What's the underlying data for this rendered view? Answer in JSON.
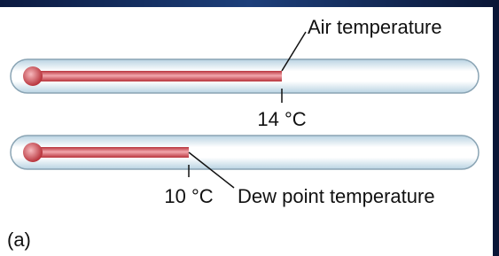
{
  "thermometers": [
    {
      "label": "Air temperature",
      "reading": "14 °C"
    },
    {
      "label": "Dew point temperature",
      "reading": "10 °C"
    }
  ],
  "panel_label": "(a)"
}
